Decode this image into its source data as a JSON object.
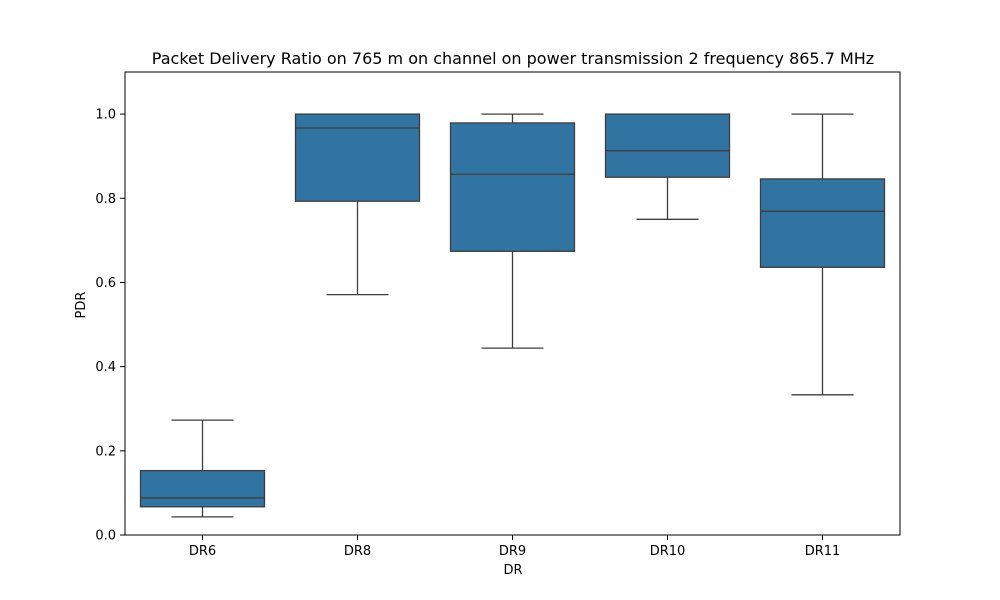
{
  "chart_data": {
    "type": "box",
    "title": "Packet Delivery Ratio on 765 m on channel on power transmission 2 frequency 865.7 MHz",
    "xlabel": "DR",
    "ylabel": "PDR",
    "ylim": [
      0.0,
      1.1
    ],
    "yticks": [
      0.0,
      0.2,
      0.4,
      0.6,
      0.8,
      1.0
    ],
    "ytick_labels": [
      "0.0",
      "0.2",
      "0.4",
      "0.6",
      "0.8",
      "1.0"
    ],
    "categories": [
      "DR6",
      "DR8",
      "DR9",
      "DR10",
      "DR11"
    ],
    "boxes": [
      {
        "category": "DR6",
        "whisker_low": 0.043,
        "q1": 0.067,
        "median": 0.088,
        "q3": 0.153,
        "whisker_high": 0.273
      },
      {
        "category": "DR8",
        "whisker_low": 0.571,
        "q1": 0.793,
        "median": 0.967,
        "q3": 1.0,
        "whisker_high": 1.0
      },
      {
        "category": "DR9",
        "whisker_low": 0.444,
        "q1": 0.674,
        "median": 0.857,
        "q3": 0.979,
        "whisker_high": 1.0
      },
      {
        "category": "DR10",
        "whisker_low": 0.75,
        "q1": 0.85,
        "median": 0.913,
        "q3": 1.0,
        "whisker_high": 1.0
      },
      {
        "category": "DR11",
        "whisker_low": 0.333,
        "q1": 0.636,
        "median": 0.769,
        "q3": 0.846,
        "whisker_high": 1.0
      }
    ],
    "box_color": "#3274a1",
    "line_color": "#3d3d3d"
  }
}
